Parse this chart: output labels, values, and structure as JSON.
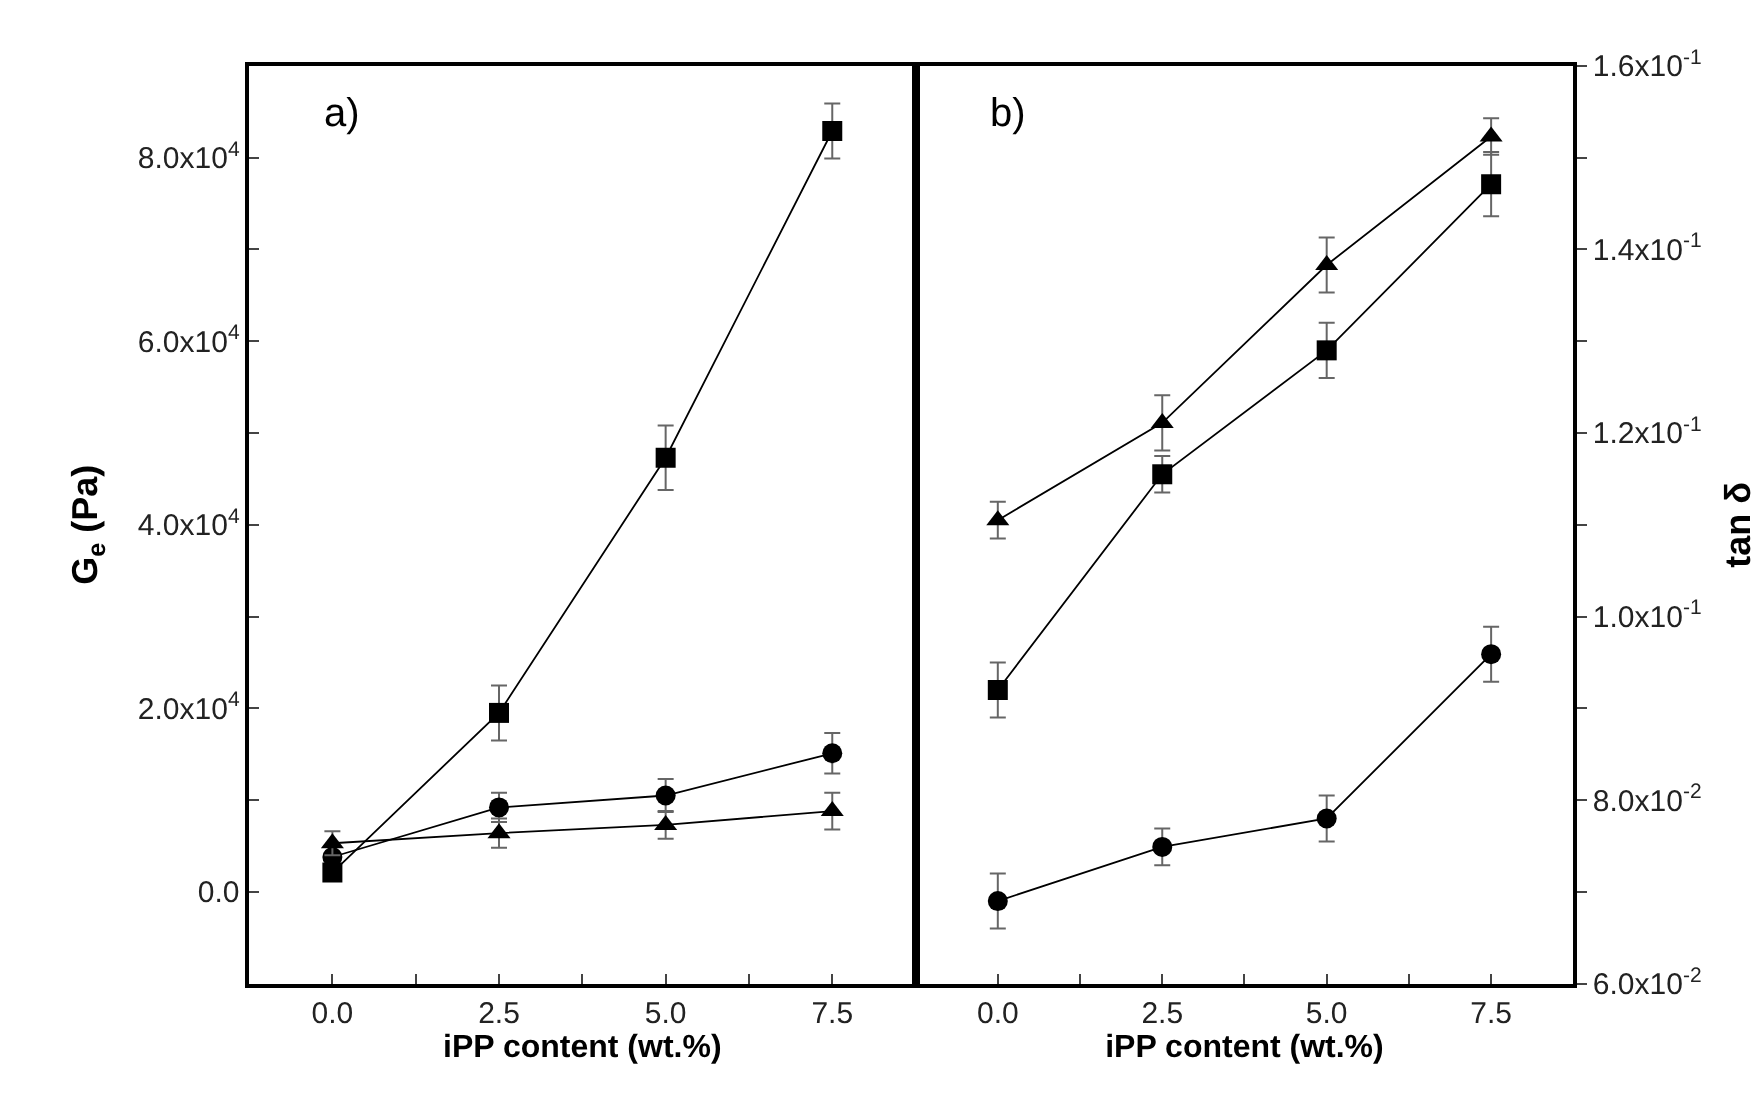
{
  "chart_data": [
    {
      "type": "line",
      "annotations": [
        "a)"
      ],
      "xlabel": "iPP content (wt.%)",
      "ylabel": "G$_{e}$ (Pa)",
      "x": [
        0,
        2.5,
        5,
        7.5
      ],
      "xlim": [
        -1.25,
        8.75
      ],
      "xticks": [
        {
          "value": 0,
          "label": "0.0"
        },
        {
          "value": 1.25,
          "label": null
        },
        {
          "value": 2.5,
          "label": "2.5"
        },
        {
          "value": 3.75,
          "label": null
        },
        {
          "value": 5,
          "label": "5.0"
        },
        {
          "value": 6.25,
          "label": null
        },
        {
          "value": 7.5,
          "label": "7.5"
        }
      ],
      "ylim": [
        -10000,
        90000
      ],
      "yticks": [
        {
          "value": 0,
          "label": "0.0"
        },
        {
          "value": 10000,
          "label": null
        },
        {
          "value": 20000,
          "label": "2.0x10$^{4}$"
        },
        {
          "value": 30000,
          "label": null
        },
        {
          "value": 40000,
          "label": "4.0x10$^{4}$"
        },
        {
          "value": 50000,
          "label": null
        },
        {
          "value": 60000,
          "label": "6.0x10$^{4}$"
        },
        {
          "value": 70000,
          "label": null
        },
        {
          "value": 80000,
          "label": "8.0x10$^{4}$"
        }
      ],
      "grid": false,
      "series": [
        {
          "color": "#000000",
          "marker": "square",
          "values": [
            2100,
            19500,
            47300,
            82900
          ],
          "errors": [
            null,
            3000,
            3500,
            3000
          ]
        },
        {
          "color": "#000000",
          "marker": "circle",
          "values": [
            3800,
            9200,
            10500,
            15100
          ],
          "errors": [
            null,
            1600,
            1800,
            2200
          ]
        },
        {
          "color": "#000000",
          "marker": "triangle",
          "values": [
            5300,
            6400,
            7300,
            8800
          ],
          "errors": [
            1300,
            1600,
            1500,
            2000
          ]
        }
      ]
    },
    {
      "type": "line",
      "annotations": [
        "b)"
      ],
      "xlabel": "iPP content (wt.%)",
      "y2label": "tan δ",
      "x": [
        0,
        2.5,
        5,
        7.5
      ],
      "xlim": [
        -1.25,
        8.75
      ],
      "xticks": [
        {
          "value": 0,
          "label": "0.0"
        },
        {
          "value": 1.25,
          "label": null
        },
        {
          "value": 2.5,
          "label": "2.5"
        },
        {
          "value": 3.75,
          "label": null
        },
        {
          "value": 5,
          "label": "5.0"
        },
        {
          "value": 6.25,
          "label": null
        },
        {
          "value": 7.5,
          "label": "7.5"
        }
      ],
      "y2lim": [
        0.06,
        0.16
      ],
      "y2ticks": [
        {
          "value": 0.06,
          "label": "6.0x10$^{-2}$"
        },
        {
          "value": 0.07,
          "label": null
        },
        {
          "value": 0.08,
          "label": "8.0x10$^{-2}$"
        },
        {
          "value": 0.09,
          "label": null
        },
        {
          "value": 0.1,
          "label": "1.0x10$^{-1}$"
        },
        {
          "value": 0.11,
          "label": null
        },
        {
          "value": 0.12,
          "label": "1.2x10$^{-1}$"
        },
        {
          "value": 0.13,
          "label": null
        },
        {
          "value": 0.14,
          "label": "1.4x10$^{-1}$"
        },
        {
          "value": 0.15,
          "label": null
        },
        {
          "value": 0.16,
          "label": "1.6x10$^{-1}$"
        }
      ],
      "grid": false,
      "series": [
        {
          "color": "#000000",
          "marker": "square",
          "axis": "y2",
          "values": [
            0.092,
            0.1155,
            0.129,
            0.1471
          ],
          "errors": [
            0.003,
            0.002,
            0.003,
            0.0035
          ]
        },
        {
          "color": "#000000",
          "marker": "circle",
          "axis": "y2",
          "values": [
            0.069,
            0.0749,
            0.078,
            0.0959
          ],
          "errors": [
            0.003,
            0.002,
            0.0025,
            0.003
          ]
        },
        {
          "color": "#000000",
          "marker": "triangle",
          "axis": "y2",
          "values": [
            0.1105,
            0.1211,
            0.1383,
            0.1523
          ],
          "errors": [
            0.002,
            0.003,
            0.003,
            0.002
          ]
        }
      ]
    }
  ]
}
